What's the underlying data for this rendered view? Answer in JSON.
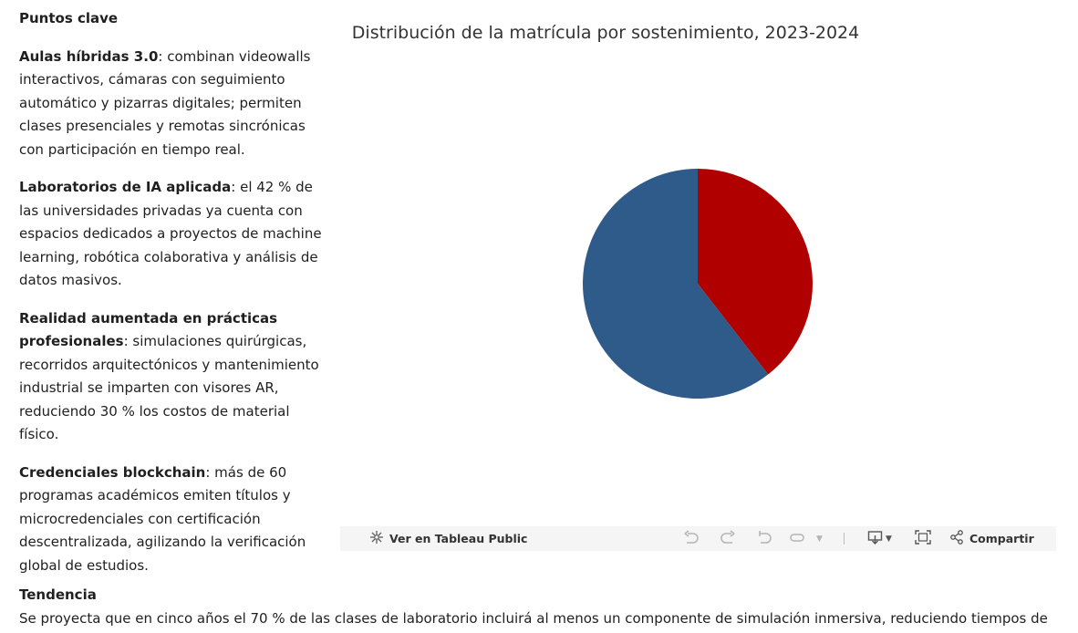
{
  "key_points": {
    "heading": "Puntos clave",
    "items": [
      {
        "title": "Aulas híbridas 3.0",
        "text": ": combinan videowalls interactivos, cámaras con seguimiento automático y pizarras digitales; permiten clases presenciales y remotas sincrónicas con participación en tiempo real."
      },
      {
        "title": "Laboratorios de IA aplicada",
        "text": ": el 42 % de las universidades privadas ya cuenta con espacios dedicados a proyectos de machine learning, robótica colaborativa y análisis de datos masivos."
      },
      {
        "title": "Realidad aumentada en prácticas profesionales",
        "text": ": simulaciones quirúrgicas, recorridos arquitectónicos y mantenimiento industrial se imparten con visores AR, reduciendo 30 % los costos de material físico."
      },
      {
        "title": "Credenciales blockchain",
        "text": ": más de 60 programas académicos emiten títulos y microcredenciales con certificación descentralizada, agilizando la verificación global de estudios."
      }
    ]
  },
  "viz": {
    "title": "Distribución de la matrícula por sostenimiento, 2023-2024"
  },
  "chart_data": {
    "type": "pie",
    "title": "Distribución de la matrícula por sostenimiento, 2023-2024",
    "slices": [
      {
        "value": 39.5,
        "color": "#b00000"
      },
      {
        "value": 60.5,
        "color": "#2e5b8a"
      }
    ]
  },
  "toolbar": {
    "tableau_label": "Ver en Tableau Public",
    "share_label": "Compartir",
    "icons": [
      "tableau-logo-icon",
      "undo-icon",
      "redo-icon",
      "revert-icon",
      "refresh-icon",
      "dropdown-icon",
      "download-icon",
      "fullscreen-icon",
      "share-icon"
    ]
  },
  "trend": {
    "heading": "Tendencia",
    "text": "Se proyecta que en cinco años el 70 % de las clases de laboratorio incluirá al menos un componente de simulación inmersiva, reduciendo tiempos de"
  }
}
